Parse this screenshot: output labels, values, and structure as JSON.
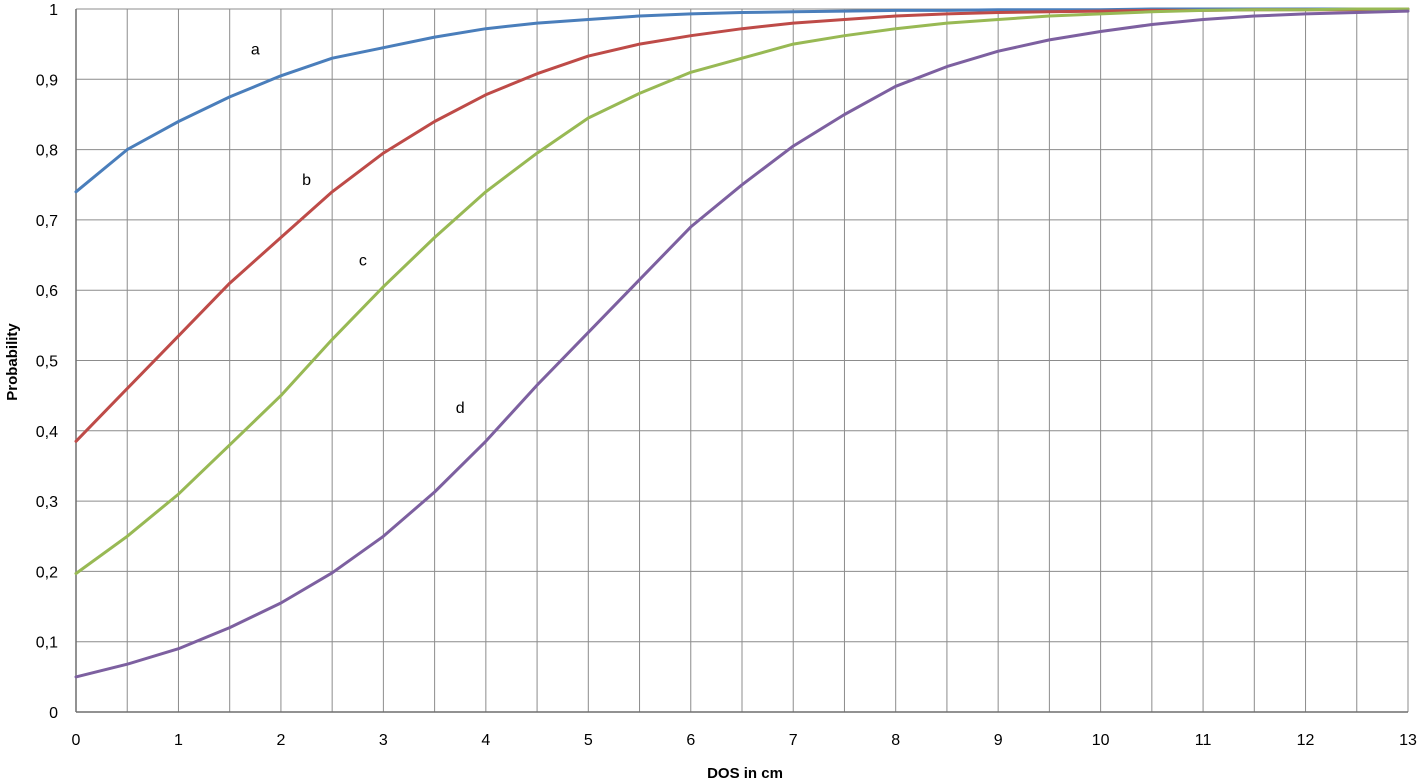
{
  "chart_data": {
    "type": "line",
    "title": "",
    "xlabel": "DOS in cm",
    "ylabel": "Probability",
    "xlim": [
      0,
      13
    ],
    "ylim": [
      0,
      1
    ],
    "x_ticks": [
      0,
      1,
      2,
      3,
      4,
      5,
      6,
      7,
      8,
      9,
      10,
      11,
      12,
      13
    ],
    "y_ticks": [
      "0",
      "0,1",
      "0,2",
      "0,3",
      "0,4",
      "0,5",
      "0,6",
      "0,7",
      "0,8",
      "0,9",
      "1"
    ],
    "y_tick_values": [
      0,
      0.1,
      0.2,
      0.3,
      0.4,
      0.5,
      0.6,
      0.7,
      0.8,
      0.9,
      1.0
    ],
    "grid": true,
    "legend": "none",
    "x": [
      0,
      0.5,
      1,
      1.5,
      2,
      2.5,
      3,
      3.5,
      4,
      4.5,
      5,
      5.5,
      6,
      6.5,
      7,
      7.5,
      8,
      8.5,
      9,
      9.5,
      10,
      10.5,
      11,
      11.5,
      12,
      12.5,
      13
    ],
    "series": [
      {
        "label": "a",
        "color": "#4a7ebb",
        "label_at": [
          1.75,
          0.935
        ],
        "values": [
          0.74,
          0.8,
          0.84,
          0.875,
          0.905,
          0.93,
          0.945,
          0.96,
          0.972,
          0.98,
          0.985,
          0.99,
          0.993,
          0.995,
          0.996,
          0.997,
          0.998,
          0.998,
          0.999,
          0.999,
          0.999,
          1.0,
          1.0,
          1.0,
          1.0,
          1.0,
          1.0
        ]
      },
      {
        "label": "b",
        "color": "#be4b48",
        "label_at": [
          2.25,
          0.75
        ],
        "values": [
          0.385,
          0.46,
          0.535,
          0.61,
          0.675,
          0.74,
          0.795,
          0.84,
          0.878,
          0.908,
          0.933,
          0.95,
          0.962,
          0.972,
          0.98,
          0.985,
          0.99,
          0.993,
          0.995,
          0.996,
          0.997,
          0.998,
          0.998,
          0.999,
          0.999,
          0.999,
          1.0
        ]
      },
      {
        "label": "c",
        "color": "#98b954",
        "label_at": [
          2.8,
          0.635
        ],
        "values": [
          0.197,
          0.25,
          0.31,
          0.38,
          0.45,
          0.53,
          0.605,
          0.675,
          0.74,
          0.795,
          0.845,
          0.88,
          0.91,
          0.93,
          0.95,
          0.962,
          0.972,
          0.98,
          0.985,
          0.99,
          0.993,
          0.996,
          0.998,
          0.999,
          0.999,
          1.0,
          1.0
        ]
      },
      {
        "label": "d",
        "color": "#7d60a0",
        "label_at": [
          3.75,
          0.425
        ],
        "values": [
          0.05,
          0.068,
          0.09,
          0.12,
          0.155,
          0.198,
          0.25,
          0.313,
          0.385,
          0.465,
          0.54,
          0.615,
          0.69,
          0.75,
          0.805,
          0.85,
          0.89,
          0.918,
          0.94,
          0.956,
          0.968,
          0.978,
          0.985,
          0.99,
          0.993,
          0.995,
          0.997
        ]
      }
    ]
  }
}
